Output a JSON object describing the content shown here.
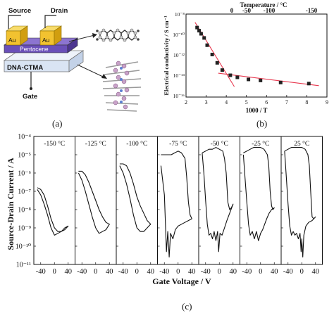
{
  "panel_a": {
    "label": "(a)",
    "source": "Source",
    "drain": "Drain",
    "electrode": "Au",
    "semiconductor": "Pentacene",
    "dielectric": "DNA-CTMA",
    "gate": "Gate",
    "colors": {
      "gold": "#f2c230",
      "pentacene": "#6a4fb8",
      "dielectric": "#d9e4f3",
      "molecule": "#333333"
    }
  },
  "panel_b_label": "(b)",
  "panel_c_label": "(c)",
  "chart_data": [
    {
      "type": "scatter",
      "panel": "b",
      "xlabel": "1000 / T",
      "ylabel": "Electrical conductivity / S cm⁻¹",
      "top_axis_label": "Temperature / °C",
      "top_ticks": [
        "0",
        "-50",
        "-100",
        "-150"
      ],
      "xlim": [
        2,
        9
      ],
      "ylim_log10": [
        -16,
        -8
      ],
      "x_ticks": [
        2,
        3,
        4,
        5,
        6,
        7,
        8,
        9
      ],
      "y_ticks": [
        "10⁻⁸",
        "10⁻¹⁰",
        "10⁻¹²",
        "10⁻¹⁴",
        "10⁻¹⁶"
      ],
      "points": [
        [
          2.55,
          -9.3
        ],
        [
          2.65,
          -9.6
        ],
        [
          2.75,
          -9.9
        ],
        [
          2.9,
          -10.3
        ],
        [
          3.05,
          -11.0
        ],
        [
          3.3,
          -11.9
        ],
        [
          3.55,
          -12.7
        ],
        [
          3.8,
          -13.4
        ],
        [
          4.2,
          -13.9
        ],
        [
          4.55,
          -14.1
        ],
        [
          5.1,
          -14.3
        ],
        [
          5.7,
          -14.4
        ],
        [
          6.7,
          -14.6
        ],
        [
          8.1,
          -14.7
        ]
      ],
      "fit_lines": [
        {
          "x": [
            2.45,
            4.4
          ],
          "y": [
            -8.8,
            -15.0
          ]
        },
        {
          "x": [
            3.6,
            8.6
          ],
          "y": [
            -13.7,
            -14.9
          ]
        }
      ],
      "marker_color": "#222222",
      "line_color": "#e8384f"
    },
    {
      "type": "line",
      "panel": "c",
      "xlabel": "Gate Voltage / V",
      "ylabel": "Source-Drain Current / A",
      "ylim_log10": [
        -11,
        -4
      ],
      "y_ticks": [
        "10⁻⁴",
        "10⁻⁵",
        "10⁻⁶",
        "10⁻⁷",
        "10⁻⁸",
        "10⁻⁹",
        "10⁻¹⁰",
        "10⁻¹¹"
      ],
      "x_tick_labels": [
        "-40",
        "0",
        "40"
      ],
      "xlim": [
        -60,
        60
      ],
      "series": [
        {
          "name": "-150 °C",
          "fwd": [
            [
              -50,
              -6.9
            ],
            [
              -40,
              -7.2
            ],
            [
              -30,
              -7.7
            ],
            [
              -20,
              -8.3
            ],
            [
              -10,
              -9.0
            ],
            [
              0,
              -9.4
            ],
            [
              10,
              -9.3
            ],
            [
              20,
              -9.2
            ],
            [
              30,
              -9.0
            ],
            [
              40,
              -8.9
            ]
          ],
          "rev": [
            [
              40,
              -8.9
            ],
            [
              30,
              -9.1
            ],
            [
              20,
              -9.2
            ],
            [
              10,
              -9.2
            ],
            [
              0,
              -9.0
            ],
            [
              -10,
              -8.5
            ],
            [
              -20,
              -7.8
            ],
            [
              -30,
              -7.2
            ],
            [
              -40,
              -6.9
            ],
            [
              -50,
              -6.8
            ]
          ]
        },
        {
          "name": "-125 °C",
          "fwd": [
            [
              -50,
              -6.0
            ],
            [
              -40,
              -6.4
            ],
            [
              -30,
              -7.0
            ],
            [
              -20,
              -7.7
            ],
            [
              -10,
              -8.4
            ],
            [
              0,
              -9.0
            ],
            [
              10,
              -9.3
            ],
            [
              20,
              -9.2
            ],
            [
              30,
              -9.1
            ],
            [
              40,
              -8.8
            ]
          ],
          "rev": [
            [
              40,
              -8.8
            ],
            [
              30,
              -8.7
            ],
            [
              20,
              -8.4
            ],
            [
              10,
              -8.0
            ],
            [
              0,
              -7.5
            ],
            [
              -10,
              -7.0
            ],
            [
              -20,
              -6.5
            ],
            [
              -30,
              -6.1
            ],
            [
              -40,
              -5.9
            ],
            [
              -50,
              -5.9
            ]
          ]
        },
        {
          "name": "-100 °C",
          "fwd": [
            [
              -50,
              -5.6
            ],
            [
              -40,
              -6.0
            ],
            [
              -30,
              -6.6
            ],
            [
              -20,
              -7.4
            ],
            [
              -10,
              -8.3
            ],
            [
              0,
              -9.0
            ],
            [
              10,
              -9.2
            ],
            [
              20,
              -9.2
            ],
            [
              30,
              -9.0
            ],
            [
              40,
              -8.8
            ]
          ],
          "rev": [
            [
              40,
              -8.8
            ],
            [
              30,
              -8.6
            ],
            [
              20,
              -8.2
            ],
            [
              10,
              -7.8
            ],
            [
              0,
              -7.3
            ],
            [
              -10,
              -6.6
            ],
            [
              -20,
              -6.0
            ],
            [
              -30,
              -5.6
            ],
            [
              -40,
              -5.5
            ],
            [
              -50,
              -5.5
            ]
          ]
        },
        {
          "name": "-75 °C",
          "fwd": [
            [
              -50,
              -5.6
            ],
            [
              -40,
              -7.2
            ],
            [
              -34,
              -10.3
            ],
            [
              -30,
              -9.2
            ],
            [
              -26,
              -10.6
            ],
            [
              -22,
              -9.3
            ],
            [
              -15,
              -9.6
            ],
            [
              -8,
              -9.1
            ],
            [
              0,
              -8.9
            ],
            [
              10,
              -8.8
            ],
            [
              20,
              -8.7
            ],
            [
              30,
              -8.6
            ],
            [
              40,
              -8.5
            ]
          ],
          "rev": [
            [
              40,
              -8.5
            ],
            [
              35,
              -8.3
            ],
            [
              30,
              -7.6
            ],
            [
              25,
              -6.2
            ],
            [
              20,
              -5.2
            ],
            [
              10,
              -4.9
            ],
            [
              0,
              -4.8
            ],
            [
              -10,
              -4.9
            ],
            [
              -20,
              -5.0
            ],
            [
              -30,
              -5.0
            ],
            [
              -40,
              -5.0
            ],
            [
              -50,
              -5.0
            ]
          ]
        },
        {
          "name": "-50 °C",
          "fwd": [
            [
              -50,
              -4.9
            ],
            [
              -45,
              -6.0
            ],
            [
              -40,
              -7.5
            ],
            [
              -35,
              -8.8
            ],
            [
              -30,
              -9.4
            ],
            [
              -25,
              -9.3
            ],
            [
              -20,
              -9.6
            ],
            [
              -15,
              -9.2
            ],
            [
              -10,
              -9.7
            ],
            [
              -5,
              -9.2
            ],
            [
              -2,
              -10.3
            ],
            [
              2,
              -9.3
            ],
            [
              8,
              -9.4
            ],
            [
              15,
              -9.0
            ],
            [
              22,
              -8.6
            ],
            [
              30,
              -8.2
            ],
            [
              40,
              -7.7
            ]
          ],
          "rev": [
            [
              40,
              -7.7
            ],
            [
              35,
              -7.9
            ],
            [
              30,
              -8.0
            ],
            [
              25,
              -7.6
            ],
            [
              20,
              -6.0
            ],
            [
              15,
              -5.2
            ],
            [
              10,
              -4.8
            ],
            [
              0,
              -4.7
            ],
            [
              -10,
              -4.6
            ],
            [
              -20,
              -4.7
            ],
            [
              -30,
              -4.7
            ],
            [
              -40,
              -4.8
            ],
            [
              -50,
              -4.9
            ]
          ]
        },
        {
          "name": "-25 °C",
          "fwd": [
            [
              -50,
              -5.0
            ],
            [
              -45,
              -6.3
            ],
            [
              -40,
              -7.6
            ],
            [
              -35,
              -8.8
            ],
            [
              -30,
              -9.4
            ],
            [
              -24,
              -9.2
            ],
            [
              -18,
              -9.6
            ],
            [
              -12,
              -9.2
            ],
            [
              -6,
              -9.7
            ],
            [
              0,
              -9.3
            ],
            [
              6,
              -9.1
            ],
            [
              12,
              -8.8
            ],
            [
              18,
              -8.5
            ],
            [
              25,
              -8.2
            ],
            [
              32,
              -8.0
            ],
            [
              40,
              -7.9
            ]
          ],
          "rev": [
            [
              40,
              -7.9
            ],
            [
              36,
              -8.0
            ],
            [
              32,
              -7.8
            ],
            [
              28,
              -7.0
            ],
            [
              24,
              -5.6
            ],
            [
              20,
              -5.0
            ],
            [
              10,
              -4.7
            ],
            [
              0,
              -4.6
            ],
            [
              -10,
              -4.6
            ],
            [
              -20,
              -4.6
            ],
            [
              -30,
              -4.7
            ],
            [
              -40,
              -4.8
            ],
            [
              -50,
              -4.9
            ]
          ]
        },
        {
          "name": "25 °C",
          "fwd": [
            [
              -50,
              -4.8
            ],
            [
              -45,
              -6.2
            ],
            [
              -40,
              -7.7
            ],
            [
              -35,
              -8.9
            ],
            [
              -30,
              -9.4
            ],
            [
              -25,
              -9.2
            ],
            [
              -20,
              -9.4
            ],
            [
              -15,
              -9.3
            ],
            [
              -10,
              -9.6
            ],
            [
              -5,
              -9.3
            ],
            [
              -2,
              -10.3
            ],
            [
              0,
              -9.6
            ],
            [
              3,
              -10.6
            ],
            [
              6,
              -9.4
            ],
            [
              12,
              -8.9
            ],
            [
              20,
              -8.7
            ],
            [
              30,
              -8.6
            ],
            [
              40,
              -8.4
            ]
          ],
          "rev": [
            [
              40,
              -8.4
            ],
            [
              35,
              -8.5
            ],
            [
              30,
              -8.4
            ],
            [
              26,
              -7.0
            ],
            [
              22,
              -5.6
            ],
            [
              18,
              -5.0
            ],
            [
              10,
              -4.7
            ],
            [
              0,
              -4.6
            ],
            [
              -10,
              -4.6
            ],
            [
              -20,
              -4.6
            ],
            [
              -30,
              -4.6
            ],
            [
              -40,
              -4.7
            ],
            [
              -50,
              -4.8
            ]
          ]
        }
      ]
    }
  ]
}
